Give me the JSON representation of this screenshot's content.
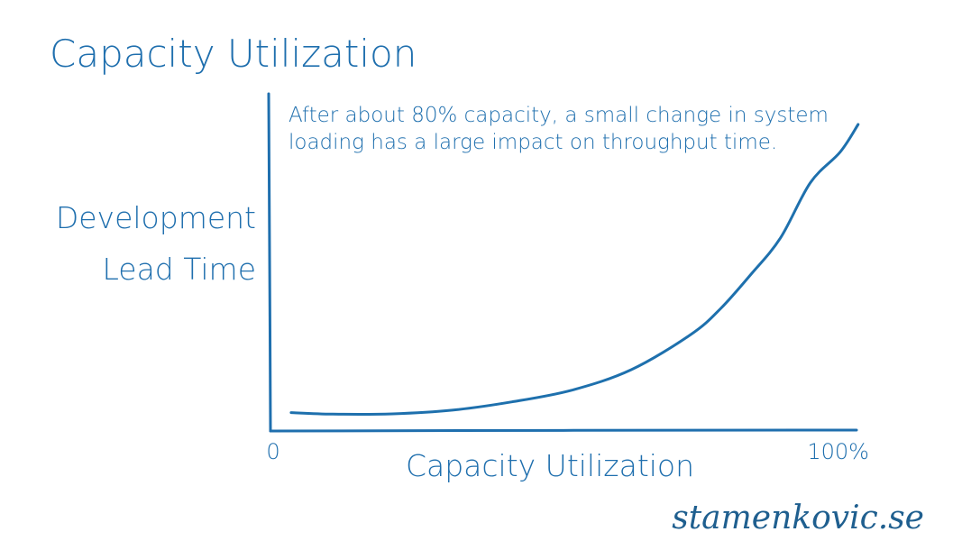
{
  "chart_data": {
    "type": "line",
    "title": "Capacity Utilization",
    "xlabel": "Capacity Utilization",
    "ylabel_line1": "Development",
    "ylabel_line2": "Lead Time",
    "x_tick_start": "0",
    "x_tick_end": "100%",
    "xlim": [
      0,
      100
    ],
    "ylim": [
      0,
      100
    ],
    "annotation_line1": "After about 80% capacity, a small change in system",
    "annotation_line2": "loading has a large impact on throughput time.",
    "grid": false,
    "legend": "none",
    "series": [
      {
        "x": [
          3,
          10,
          20,
          30,
          40,
          50,
          60,
          70,
          75,
          80,
          85,
          90,
          95,
          98
        ],
        "y": [
          6,
          5.5,
          5.6,
          6.8,
          9.5,
          13.3,
          20,
          31.5,
          40,
          51,
          63,
          81,
          91,
          100
        ]
      }
    ]
  },
  "watermark": "stamenkovic.se",
  "colors": {
    "accent": "#1f6fae",
    "curve": "#1e70ad"
  }
}
